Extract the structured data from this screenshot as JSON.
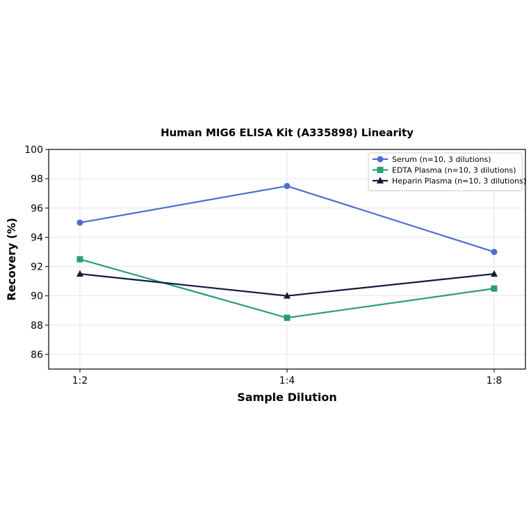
{
  "chart_data": {
    "type": "line",
    "title": "Human MIG6 ELISA Kit (A335898) Linearity",
    "xlabel": "Sample Dilution",
    "ylabel": "Recovery (%)",
    "categories": [
      "1:2",
      "1:4",
      "1:8"
    ],
    "ylim": [
      85,
      100
    ],
    "yticks": [
      86,
      88,
      90,
      92,
      94,
      96,
      98,
      100
    ],
    "grid": true,
    "legend_position": "top-right",
    "series": [
      {
        "name": "Serum (n=10, 3 dilutions)",
        "values": [
          95.0,
          97.5,
          93.0
        ],
        "color": "#4c6fcf",
        "marker": "circle"
      },
      {
        "name": "EDTA Plasma (n=10, 3 dilutions)",
        "values": [
          92.5,
          88.5,
          90.5
        ],
        "color": "#2a9d78",
        "marker": "square"
      },
      {
        "name": "Heparin Plasma (n=10, 3 dilutions)",
        "values": [
          91.5,
          90.0,
          91.5
        ],
        "color": "#111a3a",
        "marker": "triangle"
      }
    ]
  }
}
